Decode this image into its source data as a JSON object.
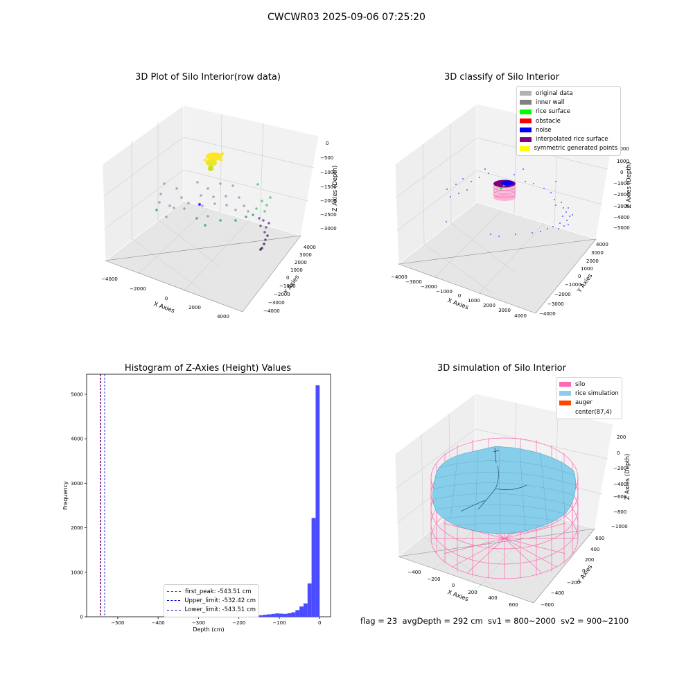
{
  "page": {
    "suptitle": "CWCWR03 2025-09-06 07:25:20",
    "bottom_text": "flag = 23  avgDepth = 292 cm  sv1 = 800~2000  sv2 = 900~2100"
  },
  "chart_data": [
    {
      "type": "scatter",
      "title": "3D Plot of Silo Interior(row data)",
      "xlabel": "X Axies",
      "ylabel": "Y Axies",
      "zlabel": "Z Axies (Depth)",
      "x_ticks": [
        "−4000",
        "−2000",
        "0",
        "2000",
        "4000"
      ],
      "y_ticks": [
        "−4000",
        "−3000",
        "−2000",
        "−1000",
        "0",
        "1000",
        "2000",
        "3000",
        "4000"
      ],
      "z_ticks": [
        "0",
        "−500",
        "−1000",
        "−1500",
        "−2000",
        "−2500",
        "−3000"
      ],
      "colormap": [
        "#440154",
        "#3b528b",
        "#21918c",
        "#5ec962",
        "#fde725"
      ],
      "grid": true
    },
    {
      "type": "scatter",
      "title": "3D classify of Silo Interior",
      "xlabel": "X Axies",
      "ylabel": "Y Axies",
      "zlabel": "Z Axies (Depth)",
      "x_ticks": [
        "−4000",
        "−3000",
        "−2000",
        "−1000",
        "0",
        "1000",
        "2000",
        "3000",
        "4000"
      ],
      "y_ticks": [
        "−4000",
        "−3000",
        "−2000",
        "−1000",
        "0",
        "1000",
        "2000",
        "3000",
        "4000"
      ],
      "z_ticks": [
        "2000",
        "1000",
        "0",
        "−1000",
        "−2000",
        "−3000",
        "−4000",
        "−5000"
      ],
      "legend_position": "upper-right",
      "legend": [
        {
          "label": "original data",
          "color": "#b3b3b3"
        },
        {
          "label": "inner wall",
          "color": "#808080"
        },
        {
          "label": "rice surface",
          "color": "#00ff00"
        },
        {
          "label": "obstacle",
          "color": "#ff0000"
        },
        {
          "label": "noise",
          "color": "#0000ff"
        },
        {
          "label": "interpolated rice surface",
          "color": "#800080"
        },
        {
          "label": "symmetric generated points",
          "color": "#ffff00"
        }
      ],
      "grid": true
    },
    {
      "type": "bar",
      "title": "Histogram of Z-Axies (Height) Values",
      "xlabel": "Depth (cm)",
      "ylabel": "Frequency",
      "xlim": [
        -577,
        27
      ],
      "ylim": [
        0,
        5450
      ],
      "x_ticks": [
        -500,
        -400,
        -300,
        -200,
        -100,
        0
      ],
      "x_tick_labels": [
        "−500",
        "−400",
        "−300",
        "−200",
        "−100",
        "0"
      ],
      "y_ticks": [
        0,
        1000,
        2000,
        3000,
        4000,
        5000
      ],
      "bin_width": 10,
      "bins_left": [
        -210,
        -200,
        -190,
        -180,
        -170,
        -160,
        -150,
        -140,
        -130,
        -120,
        -110,
        -100,
        -90,
        -80,
        -70,
        -60,
        -50,
        -40,
        -30,
        -20,
        -10
      ],
      "values": [
        5,
        8,
        10,
        12,
        18,
        25,
        35,
        45,
        55,
        65,
        75,
        70,
        65,
        80,
        100,
        150,
        230,
        300,
        750,
        2220,
        5200
      ],
      "bar_color": "#4b4bff",
      "vlines": [
        {
          "x": -543.51,
          "color": "#ff0000",
          "label": "first_peak: -543.51 cm"
        },
        {
          "x": -532.42,
          "color": "#0000cc",
          "label": "Upper_limit: -532.42 cm"
        },
        {
          "x": -543.51,
          "color": "#0000cc",
          "label": "Lower_limit: -543.51 cm"
        }
      ],
      "legend_position": "lower-center"
    },
    {
      "type": "surface",
      "title": "3D simulation of Silo Interior",
      "xlabel": "X Axies",
      "ylabel": "Y Axies",
      "zlabel": "Z Axies (Depth)",
      "x_ticks": [
        "−400",
        "−200",
        "0",
        "200",
        "400",
        "600"
      ],
      "y_ticks": [
        "−600",
        "−400",
        "−200",
        "0",
        "200",
        "400",
        "600"
      ],
      "z_ticks": [
        "200",
        "0",
        "−200",
        "−400",
        "−600",
        "−800",
        "−1000"
      ],
      "legend_position": "upper-right",
      "legend": [
        {
          "label": "silo",
          "color": "#ff69b4"
        },
        {
          "label": "rice simulation",
          "color": "#87ceeb"
        },
        {
          "label": "auger",
          "color": "#ff4500"
        },
        {
          "label": "center(87,4)",
          "color": ""
        }
      ],
      "grid": true
    }
  ]
}
